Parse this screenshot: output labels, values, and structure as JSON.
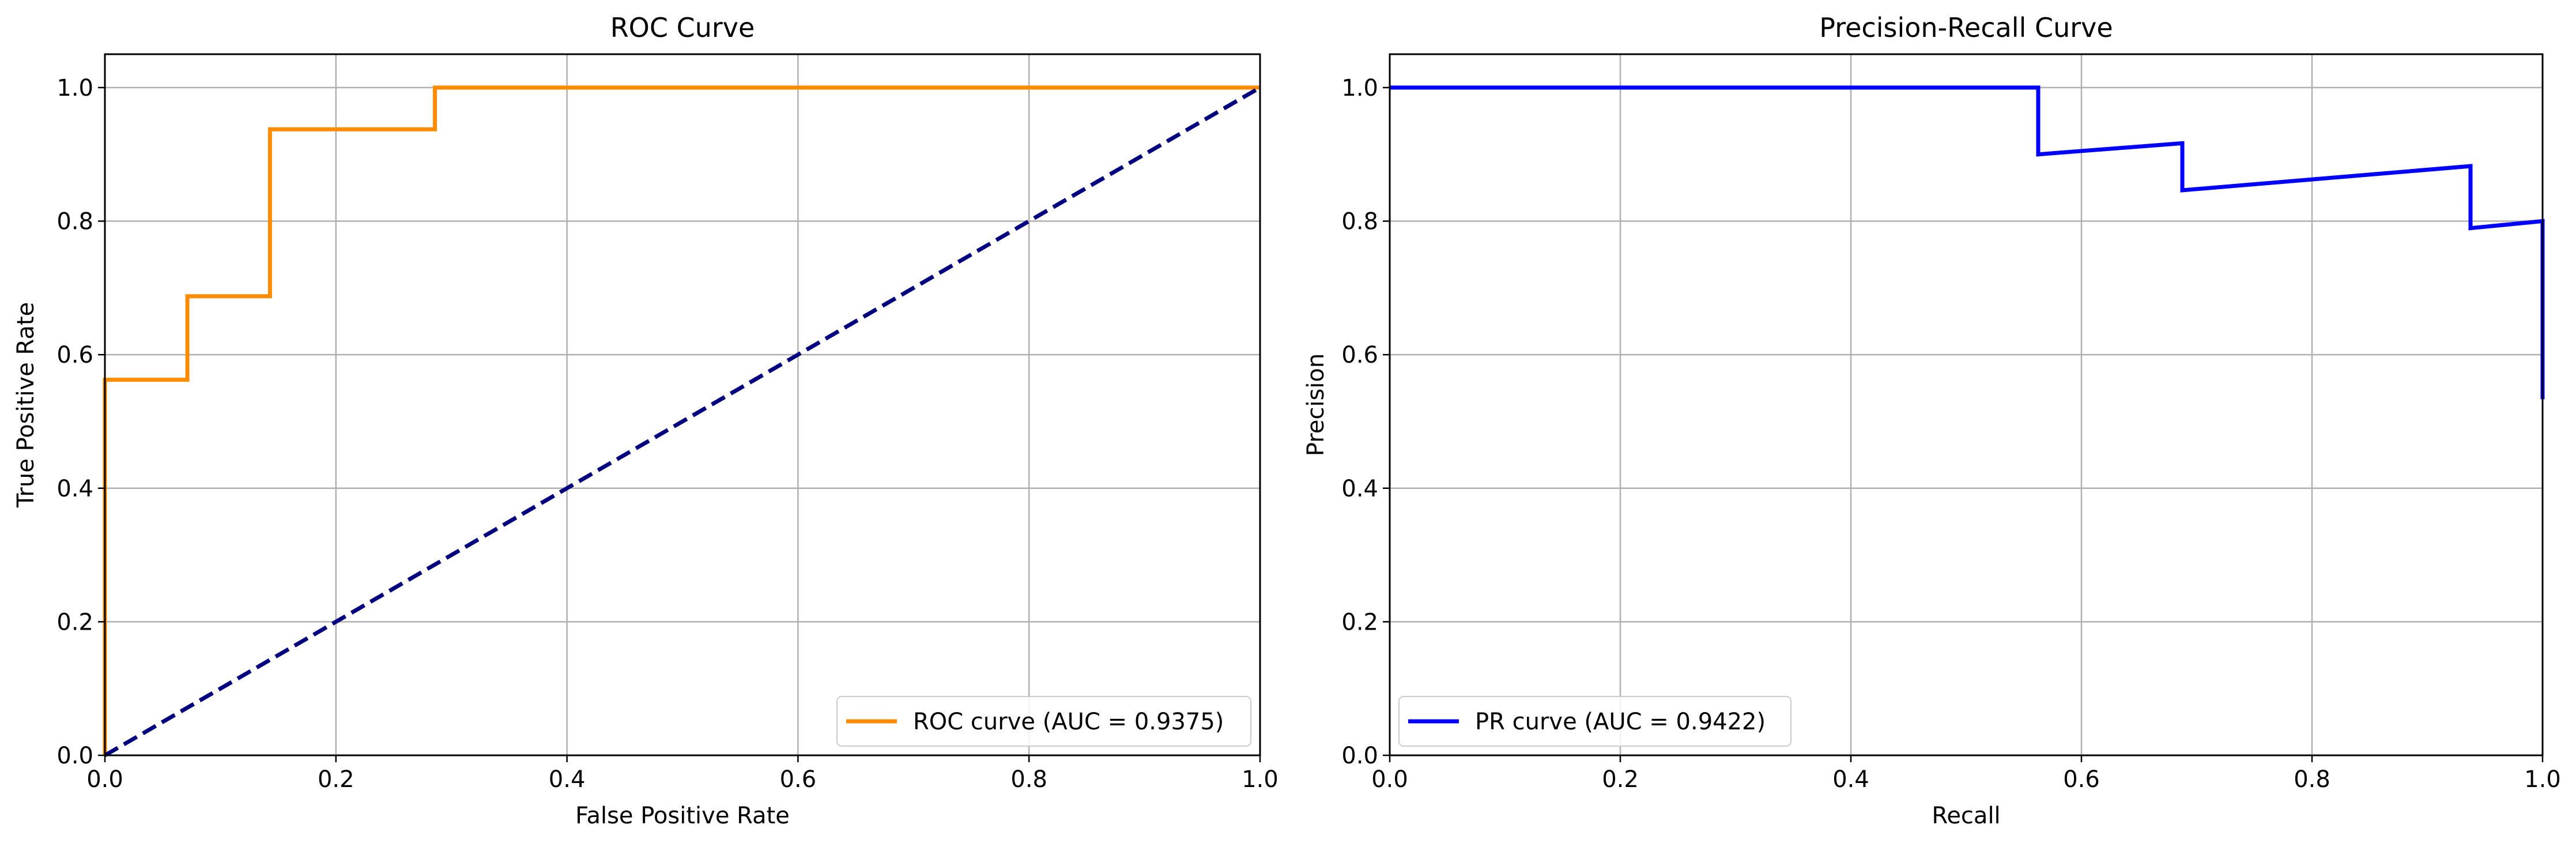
{
  "chart_data": [
    {
      "type": "line",
      "title": "ROC Curve",
      "xlabel": "False Positive Rate",
      "ylabel": "True Positive Rate",
      "xlim": [
        0.0,
        1.0
      ],
      "ylim": [
        0.0,
        1.05
      ],
      "xticks": [
        "0.0",
        "0.2",
        "0.4",
        "0.6",
        "0.8",
        "1.0"
      ],
      "yticks": [
        "0.0",
        "0.2",
        "0.4",
        "0.6",
        "0.8",
        "1.0"
      ],
      "grid": true,
      "legend_position": "lower-right",
      "series": [
        {
          "name": "ROC curve (AUC = 0.9375)",
          "color": "#ff8c00",
          "style": "solid",
          "x": [
            0.0,
            0.0,
            0.0714,
            0.0714,
            0.1429,
            0.1429,
            0.2857,
            0.2857,
            1.0
          ],
          "y": [
            0.0,
            0.5625,
            0.5625,
            0.6875,
            0.6875,
            0.9375,
            0.9375,
            1.0,
            1.0
          ]
        },
        {
          "color": "#000080",
          "style": "dashed",
          "x": [
            0.0,
            1.0
          ],
          "y": [
            0.0,
            1.0
          ]
        }
      ]
    },
    {
      "type": "line",
      "title": "Precision-Recall Curve",
      "xlabel": "Recall",
      "ylabel": "Precision",
      "xlim": [
        0.0,
        1.0
      ],
      "ylim": [
        0.0,
        1.05
      ],
      "xticks": [
        "0.0",
        "0.2",
        "0.4",
        "0.6",
        "0.8",
        "1.0"
      ],
      "yticks": [
        "0.0",
        "0.2",
        "0.4",
        "0.6",
        "0.8",
        "1.0"
      ],
      "grid": true,
      "legend_position": "lower-left",
      "series": [
        {
          "name": "PR curve (AUC = 0.9422)",
          "color": "#0000ff",
          "style": "solid",
          "x": [
            0.0,
            0.5625,
            0.5625,
            0.6875,
            0.6875,
            0.9375,
            0.9375,
            1.0,
            1.0
          ],
          "y": [
            1.0,
            1.0,
            0.9,
            0.9167,
            0.8462,
            0.8824,
            0.7895,
            0.8,
            0.5333
          ]
        }
      ]
    }
  ]
}
